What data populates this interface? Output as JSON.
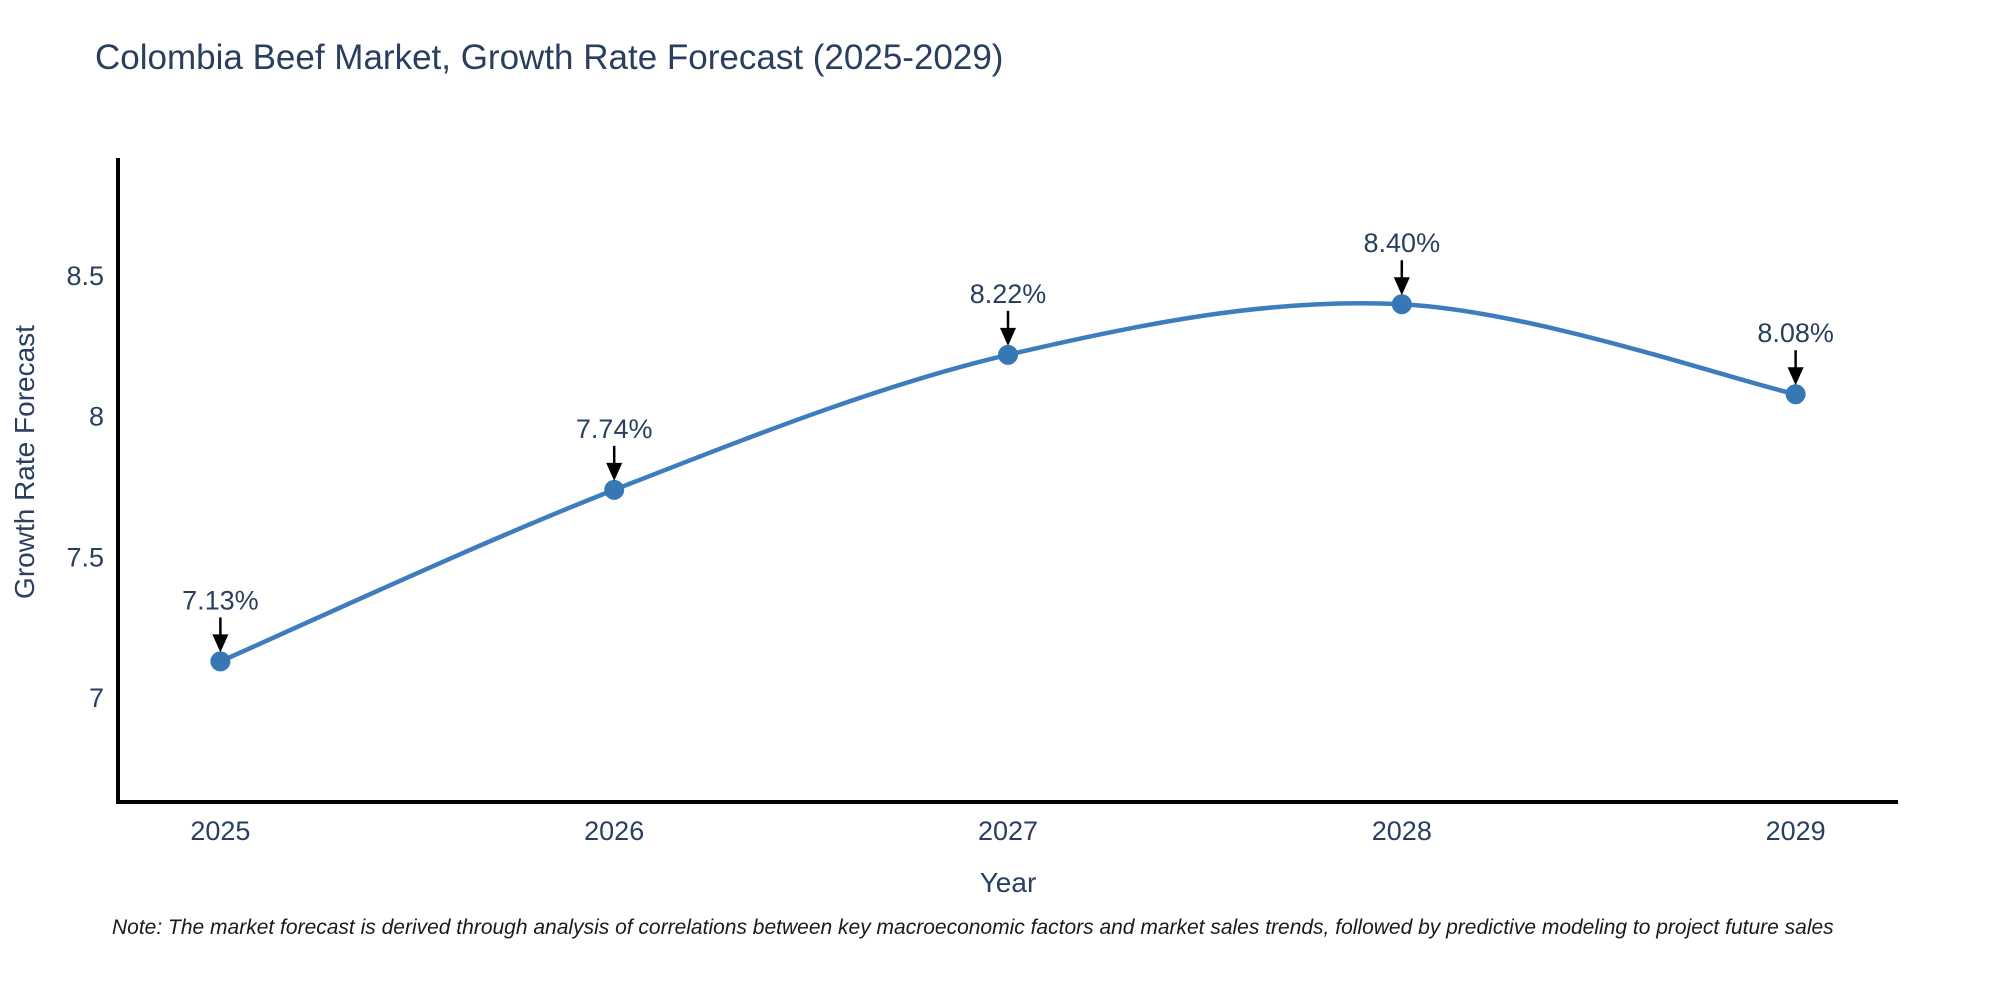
{
  "header": {
    "title": "Colombia Beef Market, Growth Rate Forecast (2025-2029)"
  },
  "footnote": {
    "text": "Note: The market forecast is derived through analysis of correlations between key macroeconomic factors and market sales trends, followed by predictive modeling to project future sales"
  },
  "colors": {
    "line": "#3e7dbd",
    "marker": "#3778b4",
    "axis": "#000000",
    "text": "#2a3f5f",
    "annotation_text": "#2a3f5f",
    "arrow": "#000000",
    "background": "#ffffff"
  },
  "chart_data": {
    "type": "line",
    "title": "Colombia Beef Market, Growth Rate Forecast (2025-2029)",
    "xlabel": "Year",
    "ylabel": "Growth Rate Forecast",
    "x": [
      2025,
      2026,
      2027,
      2028,
      2029
    ],
    "series": [
      {
        "name": "Growth Rate Forecast",
        "values": [
          7.13,
          7.74,
          8.22,
          8.4,
          8.08
        ]
      }
    ],
    "point_labels": [
      "7.13%",
      "7.74%",
      "8.22%",
      "8.40%",
      "8.08%"
    ],
    "xtick_labels": [
      "2025",
      "2026",
      "2027",
      "2028",
      "2029"
    ],
    "ytick_values": [
      7,
      7.5,
      8,
      8.5
    ],
    "ytick_labels": [
      "7",
      "7.5",
      "8",
      "8.5"
    ],
    "xlim": [
      2024.74,
      2029.26
    ],
    "ylim": [
      6.63,
      8.92
    ],
    "line_shape": "spline",
    "grid": false,
    "legend_visible": false,
    "annotations_style": "value label with downward arrow at each point"
  }
}
